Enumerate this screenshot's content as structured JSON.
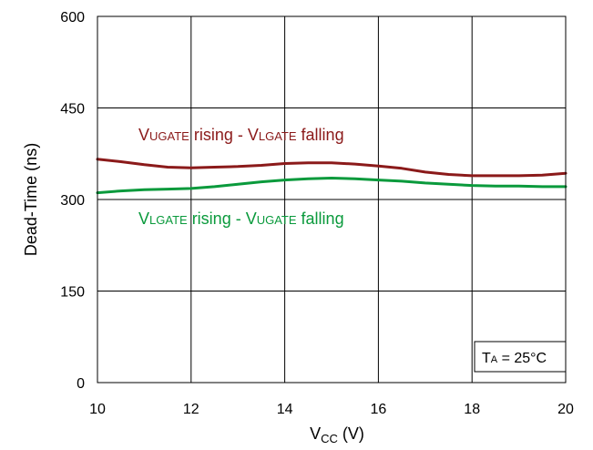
{
  "chart_data": {
    "type": "line",
    "title": "",
    "xlabel": {
      "main": "V",
      "sub": "CC",
      "unit": " (V)"
    },
    "ylabel": "Dead-Time (ns)",
    "xlim": [
      10,
      20
    ],
    "ylim": [
      0,
      600
    ],
    "xticks": [
      "10",
      "12",
      "14",
      "16",
      "18",
      "20"
    ],
    "yticks": [
      "0",
      "150",
      "300",
      "450",
      "600"
    ],
    "grid": true,
    "series": [
      {
        "color": "#8B1A1A",
        "label": {
          "p1": "V",
          "s1": "UGATE",
          "p2": " rising - V",
          "s2": "LGATE",
          "p3": " falling"
        },
        "x": [
          10,
          10.5,
          11,
          11.5,
          12,
          12.5,
          13,
          13.5,
          14,
          14.5,
          15,
          15.5,
          16,
          16.5,
          17,
          17.5,
          18,
          18.5,
          19,
          19.5,
          20
        ],
        "y": [
          366,
          362,
          357,
          353,
          352,
          353,
          354,
          356,
          359,
          360,
          360,
          358,
          355,
          351,
          345,
          341,
          339,
          339,
          339,
          340,
          343
        ]
      },
      {
        "color": "#0A9A3C",
        "label": {
          "p1": "V",
          "s1": "LGATE",
          "p2": " rising - V",
          "s2": "UGATE",
          "p3": " falling"
        },
        "x": [
          10,
          10.5,
          11,
          11.5,
          12,
          12.5,
          13,
          13.5,
          14,
          14.5,
          15,
          15.5,
          16,
          16.5,
          17,
          17.5,
          18,
          18.5,
          19,
          19.5,
          20
        ],
        "y": [
          311,
          314,
          316,
          317,
          318,
          321,
          325,
          329,
          332,
          334,
          335,
          334,
          332,
          330,
          327,
          325,
          323,
          322,
          322,
          321,
          321
        ]
      }
    ],
    "annotation": {
      "main": "T",
      "sub": "A",
      "rest": " = 25°C"
    }
  }
}
